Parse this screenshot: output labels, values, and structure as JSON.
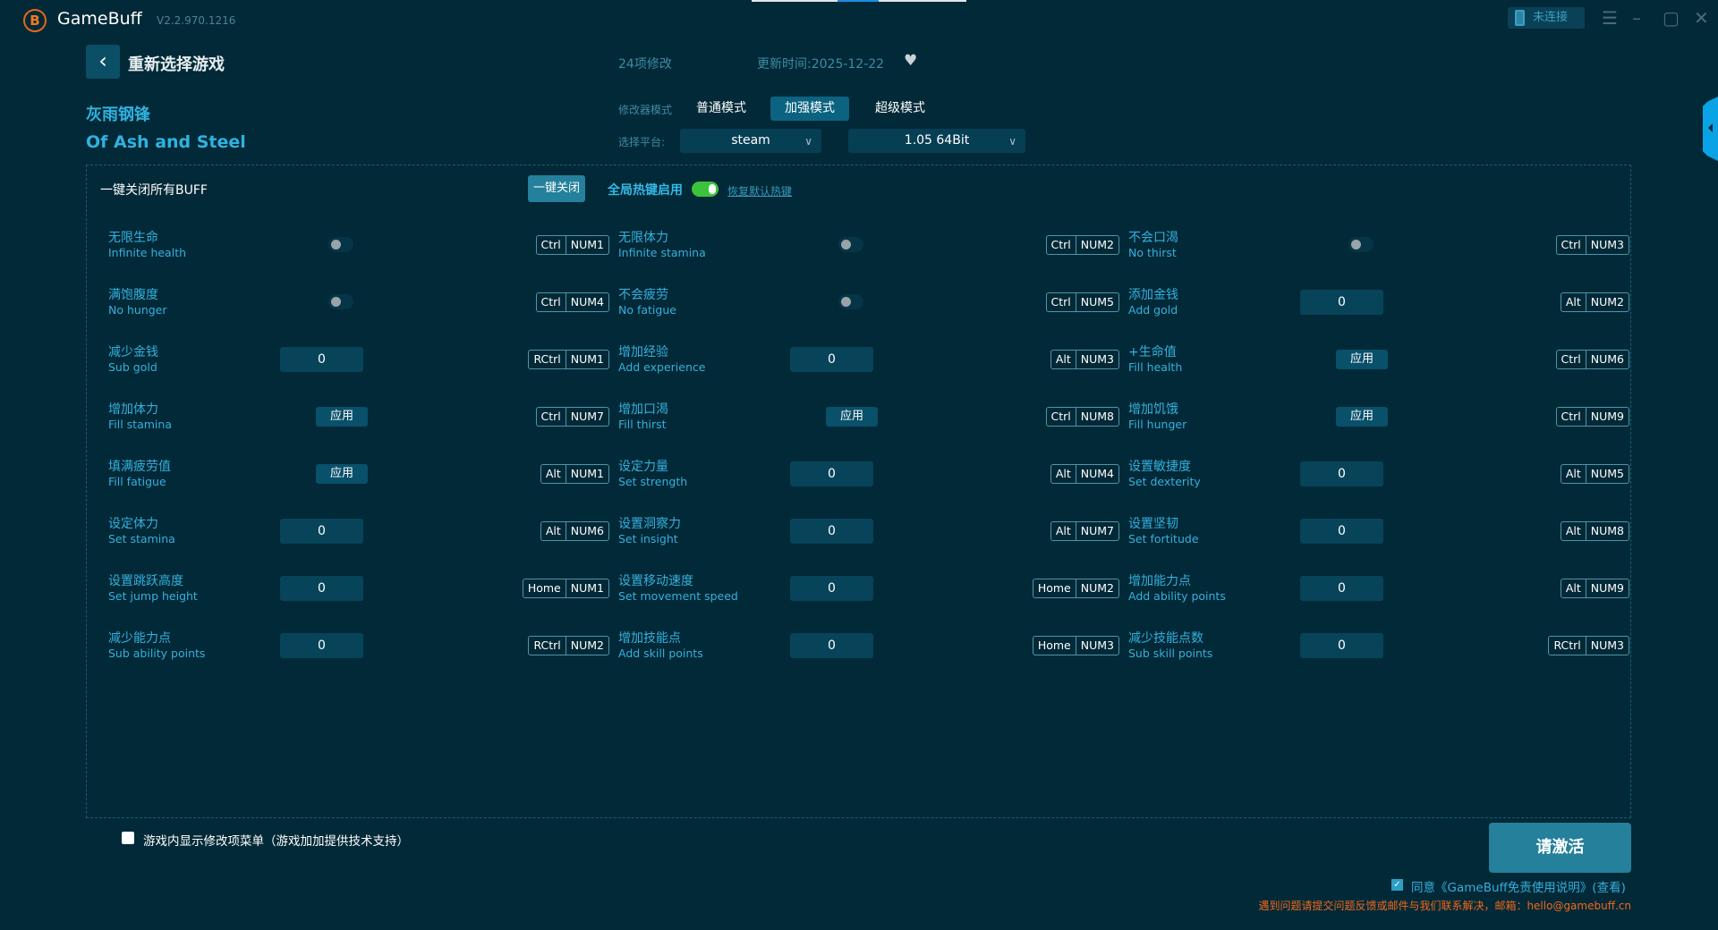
{
  "app": {
    "name": "GameBuff",
    "version": "V2.2.970.1216",
    "connection": "未连接"
  },
  "header": {
    "back_label": "重新选择游戏",
    "mod_count": "24项修改",
    "updated": "更新时间:2025-12-22"
  },
  "game": {
    "title_cn": "灰雨钢锋",
    "title_en": "Of Ash and Steel"
  },
  "mode": {
    "label": "修改器模式",
    "options": [
      "普通模式",
      "加强模式",
      "超级模式"
    ],
    "selected": "加强模式"
  },
  "platform": {
    "label": "选择平台:",
    "value": "steam",
    "version": "1.05 64Bit"
  },
  "toolbar": {
    "close_all_label": "一键关闭所有BUFF",
    "close_all_button": "一键关闭",
    "hotkey_label": "全局热键启用",
    "hotkey_enabled": true,
    "restore_label": "恢复默认热键"
  },
  "items": [
    {
      "cn": "无限生命",
      "en": "Infinite health",
      "type": "toggle",
      "keys": [
        "Ctrl",
        "NUM1"
      ]
    },
    {
      "cn": "无限体力",
      "en": "Infinite stamina",
      "type": "toggle",
      "keys": [
        "Ctrl",
        "NUM2"
      ]
    },
    {
      "cn": "不会口渴",
      "en": "No thirst",
      "type": "toggle",
      "keys": [
        "Ctrl",
        "NUM3"
      ]
    },
    {
      "cn": "满饱腹度",
      "en": "No hunger",
      "type": "toggle",
      "keys": [
        "Ctrl",
        "NUM4"
      ]
    },
    {
      "cn": "不会疲劳",
      "en": "No fatigue",
      "type": "toggle",
      "keys": [
        "Ctrl",
        "NUM5"
      ]
    },
    {
      "cn": "添加金钱",
      "en": "Add gold",
      "type": "input",
      "value": "0",
      "keys": [
        "Alt",
        "NUM2"
      ]
    },
    {
      "cn": "减少金钱",
      "en": "Sub gold",
      "type": "input",
      "value": "0",
      "keys": [
        "RCtrl",
        "NUM1"
      ]
    },
    {
      "cn": "增加经验",
      "en": "Add experience",
      "type": "input",
      "value": "0",
      "keys": [
        "Alt",
        "NUM3"
      ]
    },
    {
      "cn": "+生命值",
      "en": "Fill health",
      "type": "apply",
      "value": "应用",
      "keys": [
        "Ctrl",
        "NUM6"
      ]
    },
    {
      "cn": "增加体力",
      "en": "Fill stamina",
      "type": "apply",
      "value": "应用",
      "keys": [
        "Ctrl",
        "NUM7"
      ]
    },
    {
      "cn": "增加口渴",
      "en": "Fill thirst",
      "type": "apply",
      "value": "应用",
      "keys": [
        "Ctrl",
        "NUM8"
      ]
    },
    {
      "cn": "增加饥饿",
      "en": "Fill hunger",
      "type": "apply",
      "value": "应用",
      "keys": [
        "Ctrl",
        "NUM9"
      ]
    },
    {
      "cn": "填满疲劳值",
      "en": "Fill fatigue",
      "type": "apply",
      "value": "应用",
      "keys": [
        "Alt",
        "NUM1"
      ]
    },
    {
      "cn": "设定力量",
      "en": "Set strength",
      "type": "input",
      "value": "0",
      "keys": [
        "Alt",
        "NUM4"
      ]
    },
    {
      "cn": "设置敏捷度",
      "en": "Set dexterity",
      "type": "input",
      "value": "0",
      "keys": [
        "Alt",
        "NUM5"
      ]
    },
    {
      "cn": "设定体力",
      "en": "Set stamina",
      "type": "input",
      "value": "0",
      "keys": [
        "Alt",
        "NUM6"
      ]
    },
    {
      "cn": "设置洞察力",
      "en": "Set insight",
      "type": "input",
      "value": "0",
      "keys": [
        "Alt",
        "NUM7"
      ]
    },
    {
      "cn": "设置坚韧",
      "en": "Set fortitude",
      "type": "input",
      "value": "0",
      "keys": [
        "Alt",
        "NUM8"
      ]
    },
    {
      "cn": "设置跳跃高度",
      "en": "Set jump height",
      "type": "input",
      "value": "0",
      "keys": [
        "Home",
        "NUM1"
      ]
    },
    {
      "cn": "设置移动速度",
      "en": "Set movement speed",
      "type": "input",
      "value": "0",
      "keys": [
        "Home",
        "NUM2"
      ]
    },
    {
      "cn": "增加能力点",
      "en": "Add ability points",
      "type": "input",
      "value": "0",
      "keys": [
        "Alt",
        "NUM9"
      ]
    },
    {
      "cn": "减少能力点",
      "en": "Sub ability points",
      "type": "input",
      "value": "0",
      "keys": [
        "RCtrl",
        "NUM2"
      ]
    },
    {
      "cn": "增加技能点",
      "en": "Add skill points",
      "type": "input",
      "value": "0",
      "keys": [
        "Home",
        "NUM3"
      ]
    },
    {
      "cn": "减少技能点数",
      "en": "Sub skill points",
      "type": "input",
      "value": "0",
      "keys": [
        "RCtrl",
        "NUM3"
      ]
    }
  ],
  "footer": {
    "overlay_label": "游戏内显示修改项菜单（游戏加加提供技术支持）",
    "activate": "请激活",
    "agree": "同意《GameBuff免责使用说明》(查看)",
    "agree_checked": true,
    "contact": "遇到问题请提交问题反馈或邮件与我们联系解决，邮箱：hello@gamebuff.cn"
  }
}
